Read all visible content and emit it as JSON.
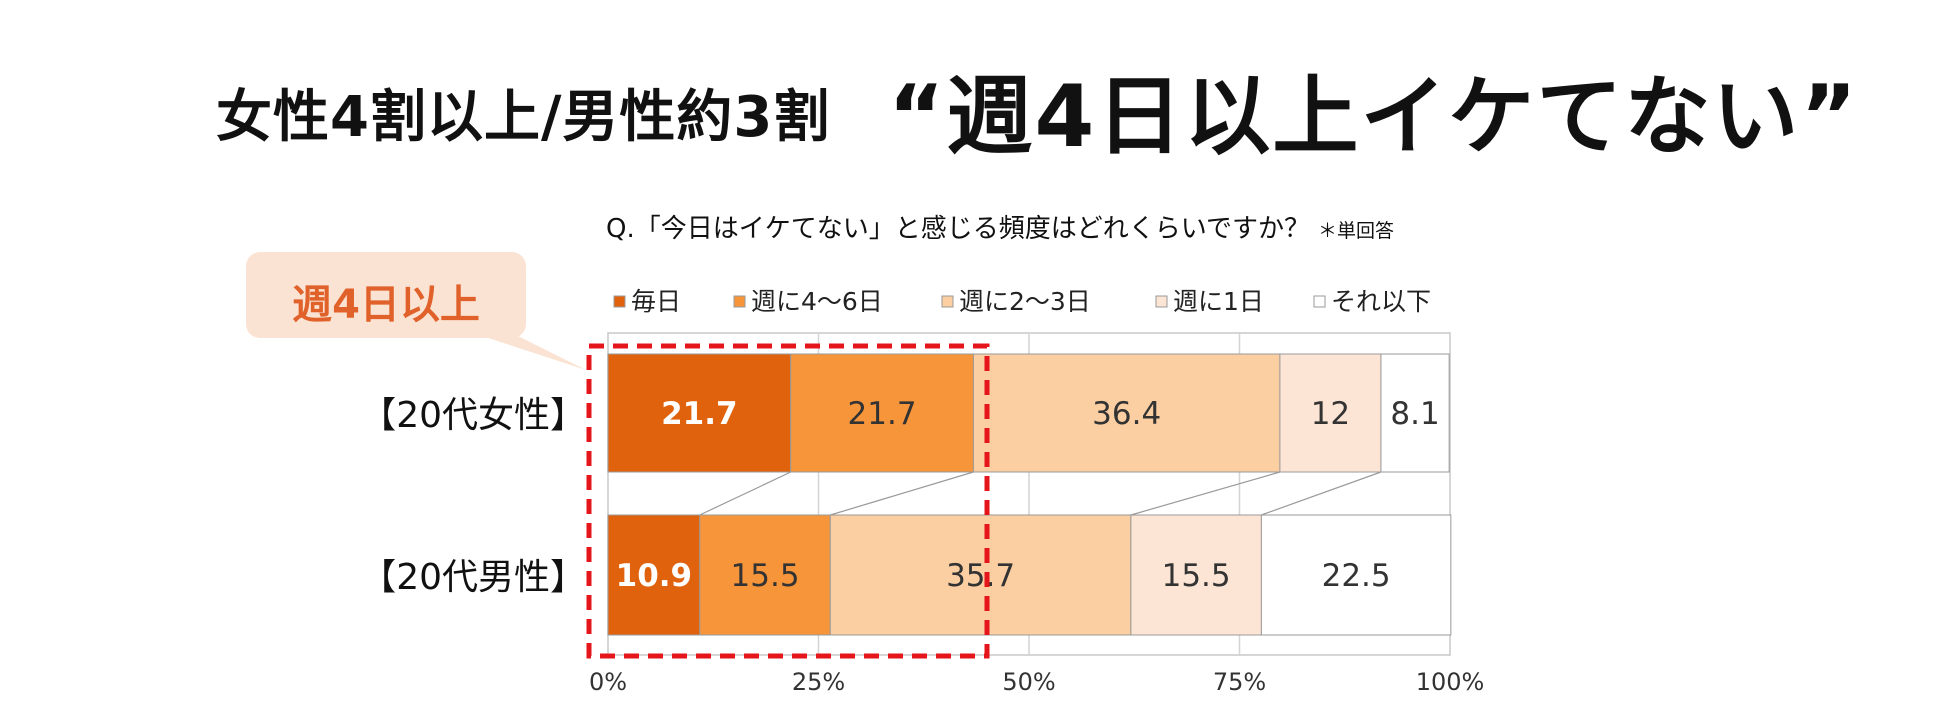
{
  "headline": {
    "small": "女性4割以上/男性約3割",
    "big": "“週4日以上イケてない”"
  },
  "question": {
    "text": "Q.「今日はイケてない」と感じる頻度はどれくらいですか？",
    "note": "＊単回答"
  },
  "callout": {
    "label": "週4日以上"
  },
  "chart_data": {
    "type": "bar",
    "orientation": "horizontal",
    "stacked": "percent",
    "categories": [
      "【20代女性】",
      "【20代男性】"
    ],
    "series": [
      {
        "name": "毎日",
        "values": [
          21.7,
          10.9
        ],
        "color": "#e0620c",
        "label_color": "#ffffff"
      },
      {
        "name": "週に4～6日",
        "values": [
          21.7,
          15.5
        ],
        "color": "#f7953a",
        "label_color": "#333333"
      },
      {
        "name": "週に2～3日",
        "values": [
          36.4,
          35.7
        ],
        "color": "#fbcfa2",
        "label_color": "#333333"
      },
      {
        "name": "週に1日",
        "values": [
          12,
          15.5
        ],
        "color": "#fde5d5",
        "label_color": "#333333"
      },
      {
        "name": "それ以下",
        "values": [
          8.1,
          22.5
        ],
        "color": "#ffffff",
        "label_color": "#333333"
      }
    ],
    "data_labels": [
      [
        "21.7",
        "21.7",
        "36.4",
        "12",
        "8.1"
      ],
      [
        "10.9",
        "15.5",
        "35.7",
        "15.5",
        "22.5"
      ]
    ],
    "x_ticks": [
      "0%",
      "25%",
      "50%",
      "75%",
      "100%"
    ],
    "xlim": [
      0,
      100
    ],
    "legend_position": "top",
    "highlight": {
      "label": "週4日以上",
      "covers_series": [
        "毎日",
        "週に4～6日"
      ]
    }
  }
}
